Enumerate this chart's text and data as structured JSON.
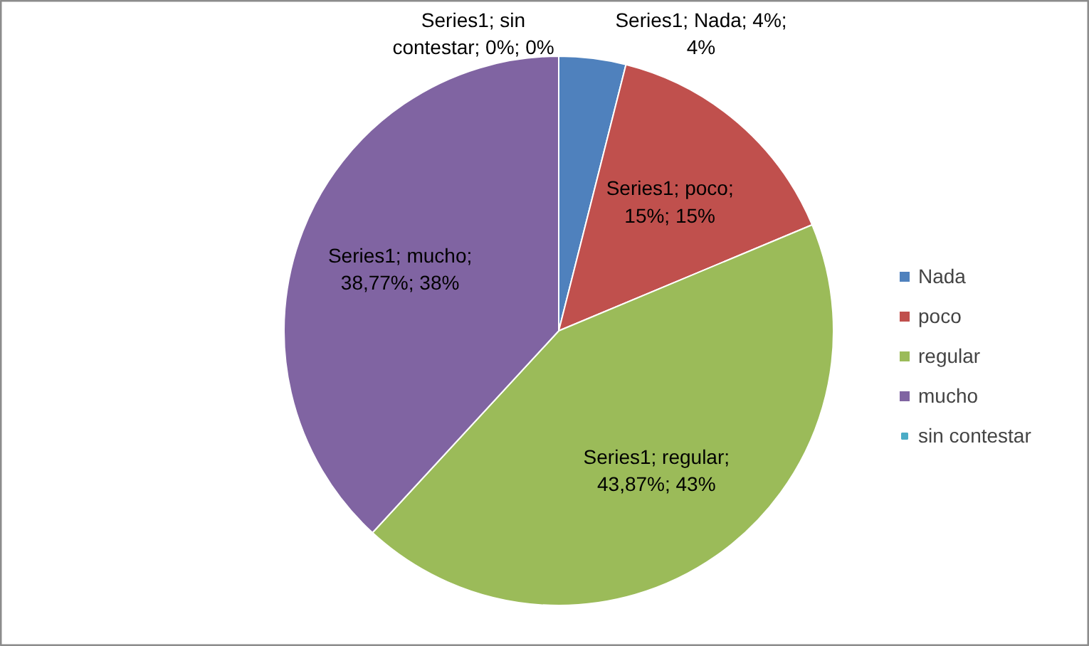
{
  "chart_data": {
    "type": "pie",
    "values": [
      4,
      15,
      43.87,
      38.77,
      0
    ],
    "categories": [
      "Nada",
      "poco",
      "regular",
      "mucho",
      "sin contestar"
    ],
    "colors": [
      "#4f81bd",
      "#c0504d",
      "#9bbb59",
      "#8064a2",
      "#4bacc6"
    ],
    "value_labels": [
      "Series1; Nada; 4%; 4%",
      "Series1; poco; 15%; 15%",
      "Series1; regular; 43,87%; 43%",
      "Series1; mucho; 38,77%; 38%",
      "Series1; sin contestar; 0%; 0%"
    ],
    "legend": "right"
  }
}
